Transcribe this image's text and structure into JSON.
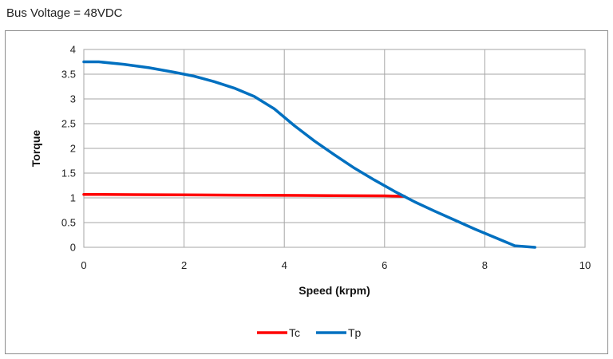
{
  "header": {
    "caption": "Bus Voltage = 48VDC"
  },
  "chart_data": {
    "type": "line",
    "title": "",
    "xlabel": "Speed (krpm)",
    "ylabel": "Torque",
    "xlim": [
      0,
      10
    ],
    "ylim": [
      0,
      4
    ],
    "xticks": [
      0,
      2,
      4,
      6,
      8,
      10
    ],
    "yticks": [
      0,
      0.5,
      1,
      1.5,
      2,
      2.5,
      3,
      3.5,
      4
    ],
    "grid": true,
    "legend_position": "bottom",
    "series": [
      {
        "name": "Tc",
        "color": "#ff0000",
        "points": [
          [
            0,
            1.07
          ],
          [
            1,
            1.065
          ],
          [
            2,
            1.06
          ],
          [
            3,
            1.055
          ],
          [
            4,
            1.05
          ],
          [
            5,
            1.045
          ],
          [
            6,
            1.04
          ],
          [
            6.4,
            1.03
          ]
        ]
      },
      {
        "name": "Tp",
        "color": "#0070c0",
        "points": [
          [
            0,
            3.75
          ],
          [
            0.3,
            3.75
          ],
          [
            0.8,
            3.7
          ],
          [
            1.3,
            3.63
          ],
          [
            1.8,
            3.54
          ],
          [
            2.2,
            3.46
          ],
          [
            2.6,
            3.35
          ],
          [
            3.0,
            3.22
          ],
          [
            3.4,
            3.05
          ],
          [
            3.8,
            2.8
          ],
          [
            4.2,
            2.46
          ],
          [
            4.6,
            2.15
          ],
          [
            5.0,
            1.87
          ],
          [
            5.4,
            1.6
          ],
          [
            5.8,
            1.36
          ],
          [
            6.2,
            1.13
          ],
          [
            6.6,
            0.92
          ],
          [
            7.0,
            0.73
          ],
          [
            7.4,
            0.55
          ],
          [
            7.8,
            0.37
          ],
          [
            8.2,
            0.2
          ],
          [
            8.6,
            0.03
          ],
          [
            9.0,
            0.0
          ]
        ]
      }
    ]
  }
}
